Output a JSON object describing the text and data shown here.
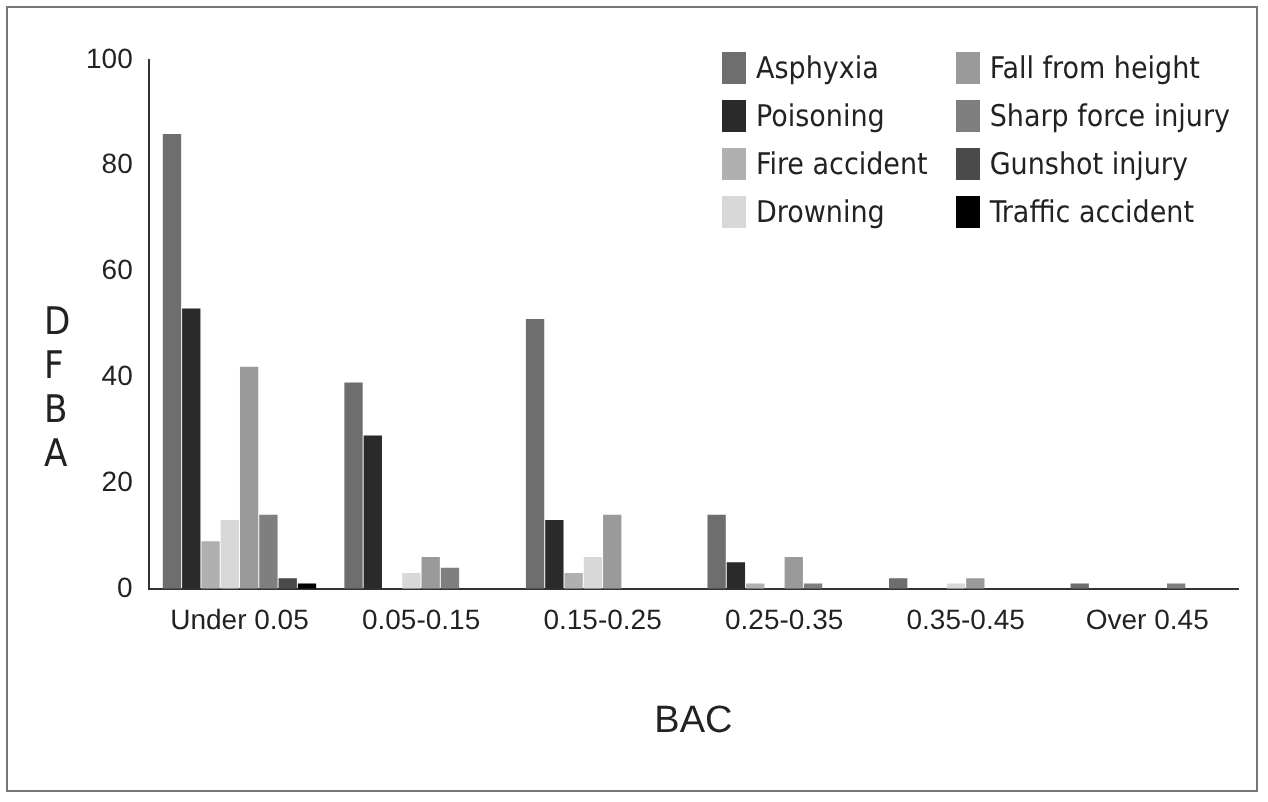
{
  "chart_data": {
    "type": "bar",
    "xlabel": "BAC",
    "ylabel": "DFBA",
    "categories": [
      "Under 0.05",
      "0.05-0.15",
      "0.15-0.25",
      "0.25-0.35",
      "0.35-0.45",
      "Over 0.45"
    ],
    "ylim": [
      0,
      100
    ],
    "yticks": [
      0,
      20,
      40,
      60,
      80,
      100
    ],
    "grid": false,
    "legend": "top right",
    "series": [
      {
        "name": "Asphyxia",
        "color": "#6e6e6e",
        "values": [
          86,
          39,
          51,
          14,
          2,
          1
        ]
      },
      {
        "name": "Poisoning",
        "color": "#2a2a2a",
        "values": [
          53,
          29,
          13,
          5,
          0,
          0
        ]
      },
      {
        "name": "Fire accident",
        "color": "#b0b0b0",
        "values": [
          9,
          0,
          3,
          1,
          0,
          0
        ]
      },
      {
        "name": "Drowning",
        "color": "#d8d8d8",
        "values": [
          13,
          3,
          6,
          0,
          1,
          0
        ]
      },
      {
        "name": "Fall from height",
        "color": "#9a9a9a",
        "values": [
          42,
          6,
          14,
          6,
          2,
          0
        ]
      },
      {
        "name": "Sharp force injury",
        "color": "#7f7f7f",
        "values": [
          14,
          4,
          0,
          1,
          0,
          1
        ]
      },
      {
        "name": "Gunshot injury",
        "color": "#4a4a4a",
        "values": [
          2,
          0,
          0,
          0,
          0,
          0
        ]
      },
      {
        "name": "Traffic accident",
        "color": "#000000",
        "values": [
          1,
          0,
          0,
          0,
          0,
          0
        ]
      }
    ]
  }
}
